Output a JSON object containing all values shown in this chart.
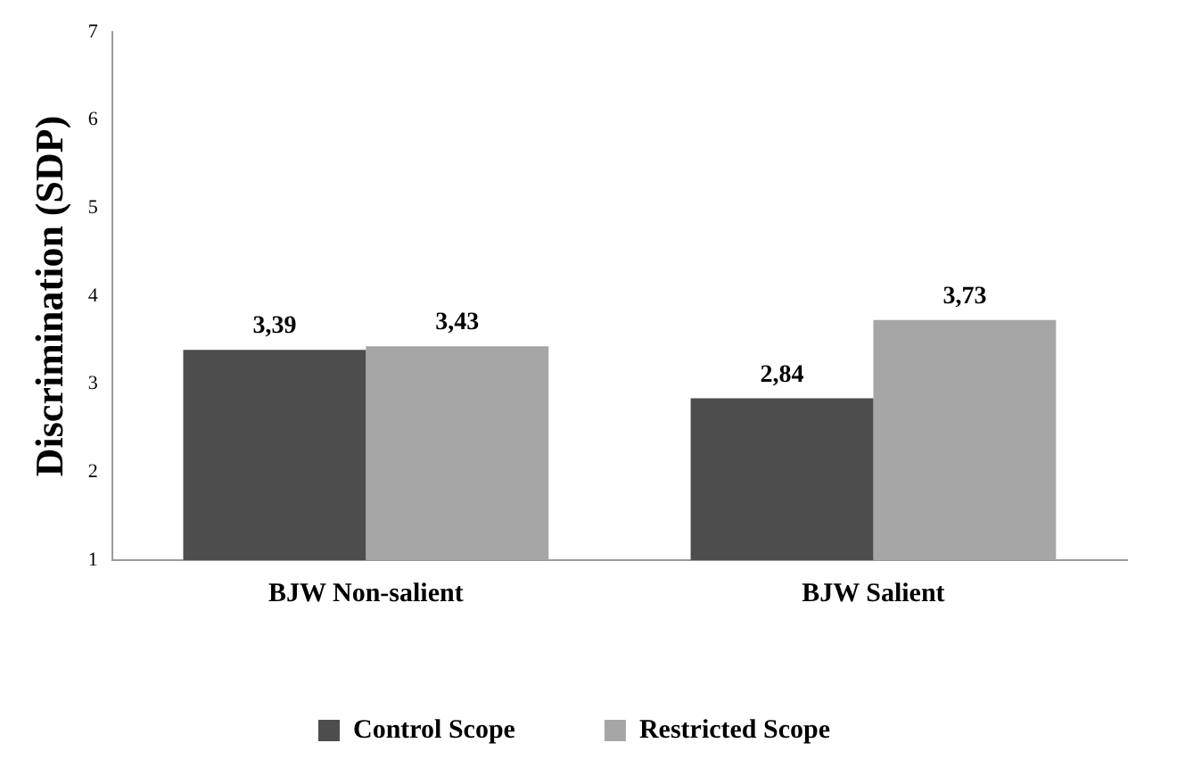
{
  "chart_data": {
    "type": "bar",
    "ylabel": "Discrimination (SDP)",
    "categories": [
      "BJW Non-salient",
      "BJW Salient"
    ],
    "series": [
      {
        "name": "Control Scope",
        "color": "#4d4d4d",
        "values": [
          3.39,
          2.84
        ],
        "value_labels": [
          "3,39",
          "2,84"
        ]
      },
      {
        "name": "Restricted Scope",
        "color": "#a6a6a6",
        "values": [
          3.43,
          3.73
        ],
        "value_labels": [
          "3,43",
          "3,73"
        ]
      }
    ],
    "ylim": [
      1,
      7
    ],
    "yticks": [
      1,
      2,
      3,
      4,
      5,
      6,
      7
    ],
    "grid": false,
    "legend": "bottom"
  }
}
